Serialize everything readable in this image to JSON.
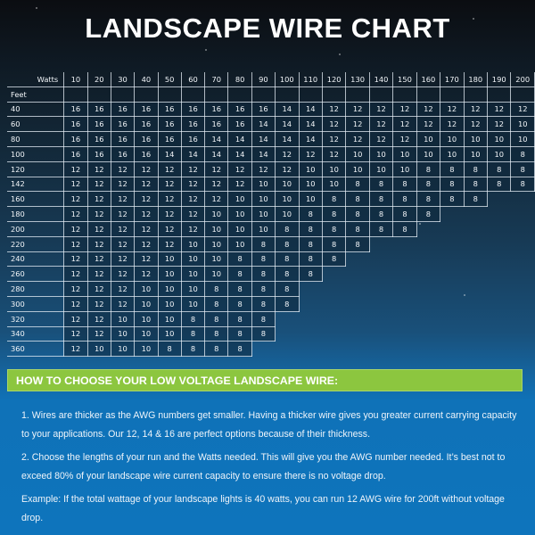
{
  "title": "LANDSCAPE WIRE CHART",
  "table": {
    "corner_label": "Watts",
    "row_header_label": "Feet",
    "watts": [
      "10",
      "20",
      "30",
      "40",
      "50",
      "60",
      "70",
      "80",
      "90",
      "100",
      "110",
      "120",
      "130",
      "140",
      "150",
      "160",
      "170",
      "180",
      "190",
      "200"
    ],
    "rows": [
      {
        "feet": "40",
        "values": [
          "16",
          "16",
          "16",
          "16",
          "16",
          "16",
          "16",
          "16",
          "16",
          "14",
          "14",
          "12",
          "12",
          "12",
          "12",
          "12",
          "12",
          "12",
          "12",
          "12"
        ]
      },
      {
        "feet": "60",
        "values": [
          "16",
          "16",
          "16",
          "16",
          "16",
          "16",
          "16",
          "16",
          "14",
          "14",
          "14",
          "12",
          "12",
          "12",
          "12",
          "12",
          "12",
          "12",
          "12",
          "10"
        ]
      },
      {
        "feet": "80",
        "values": [
          "16",
          "16",
          "16",
          "16",
          "16",
          "16",
          "14",
          "14",
          "14",
          "14",
          "14",
          "12",
          "12",
          "12",
          "12",
          "10",
          "10",
          "10",
          "10",
          "10"
        ]
      },
      {
        "feet": "100",
        "values": [
          "16",
          "16",
          "16",
          "16",
          "14",
          "14",
          "14",
          "14",
          "14",
          "12",
          "12",
          "12",
          "10",
          "10",
          "10",
          "10",
          "10",
          "10",
          "10",
          "8"
        ]
      },
      {
        "feet": "120",
        "values": [
          "12",
          "12",
          "12",
          "12",
          "12",
          "12",
          "12",
          "12",
          "12",
          "12",
          "10",
          "10",
          "10",
          "10",
          "10",
          "8",
          "8",
          "8",
          "8",
          "8"
        ]
      },
      {
        "feet": "142",
        "values": [
          "12",
          "12",
          "12",
          "12",
          "12",
          "12",
          "12",
          "12",
          "10",
          "10",
          "10",
          "10",
          "8",
          "8",
          "8",
          "8",
          "8",
          "8",
          "8",
          "8"
        ]
      },
      {
        "feet": "160",
        "values": [
          "12",
          "12",
          "12",
          "12",
          "12",
          "12",
          "12",
          "10",
          "10",
          "10",
          "10",
          "8",
          "8",
          "8",
          "8",
          "8",
          "8",
          "8"
        ]
      },
      {
        "feet": "180",
        "values": [
          "12",
          "12",
          "12",
          "12",
          "12",
          "12",
          "10",
          "10",
          "10",
          "10",
          "8",
          "8",
          "8",
          "8",
          "8",
          "8"
        ]
      },
      {
        "feet": "200",
        "values": [
          "12",
          "12",
          "12",
          "12",
          "12",
          "12",
          "10",
          "10",
          "10",
          "8",
          "8",
          "8",
          "8",
          "8",
          "8"
        ]
      },
      {
        "feet": "220",
        "values": [
          "12",
          "12",
          "12",
          "12",
          "12",
          "10",
          "10",
          "10",
          "8",
          "8",
          "8",
          "8",
          "8"
        ]
      },
      {
        "feet": "240",
        "values": [
          "12",
          "12",
          "12",
          "12",
          "10",
          "10",
          "10",
          "8",
          "8",
          "8",
          "8",
          "8"
        ]
      },
      {
        "feet": "260",
        "values": [
          "12",
          "12",
          "12",
          "12",
          "10",
          "10",
          "10",
          "8",
          "8",
          "8",
          "8"
        ]
      },
      {
        "feet": "280",
        "values": [
          "12",
          "12",
          "12",
          "10",
          "10",
          "10",
          "8",
          "8",
          "8",
          "8"
        ]
      },
      {
        "feet": "300",
        "values": [
          "12",
          "12",
          "12",
          "10",
          "10",
          "10",
          "8",
          "8",
          "8",
          "8"
        ]
      },
      {
        "feet": "320",
        "values": [
          "12",
          "12",
          "10",
          "10",
          "10",
          "8",
          "8",
          "8",
          "8"
        ]
      },
      {
        "feet": "340",
        "values": [
          "12",
          "12",
          "10",
          "10",
          "10",
          "8",
          "8",
          "8",
          "8"
        ]
      },
      {
        "feet": "360",
        "values": [
          "12",
          "10",
          "10",
          "10",
          "8",
          "8",
          "8",
          "8"
        ]
      }
    ]
  },
  "chart_data": {
    "type": "table",
    "title": "LANDSCAPE WIRE CHART",
    "xlabel": "Watts",
    "ylabel": "Feet",
    "columns": [
      10,
      20,
      30,
      40,
      50,
      60,
      70,
      80,
      90,
      100,
      110,
      120,
      130,
      140,
      150,
      160,
      170,
      180,
      190,
      200
    ],
    "rows": [
      40,
      60,
      80,
      100,
      120,
      142,
      160,
      180,
      200,
      220,
      240,
      260,
      280,
      300,
      320,
      340,
      360
    ],
    "values": [
      [
        16,
        16,
        16,
        16,
        16,
        16,
        16,
        16,
        16,
        14,
        14,
        12,
        12,
        12,
        12,
        12,
        12,
        12,
        12,
        12
      ],
      [
        16,
        16,
        16,
        16,
        16,
        16,
        16,
        16,
        14,
        14,
        14,
        12,
        12,
        12,
        12,
        12,
        12,
        12,
        12,
        10
      ],
      [
        16,
        16,
        16,
        16,
        16,
        16,
        14,
        14,
        14,
        14,
        14,
        12,
        12,
        12,
        12,
        10,
        10,
        10,
        10,
        10
      ],
      [
        16,
        16,
        16,
        16,
        14,
        14,
        14,
        14,
        14,
        12,
        12,
        12,
        10,
        10,
        10,
        10,
        10,
        10,
        10,
        8
      ],
      [
        12,
        12,
        12,
        12,
        12,
        12,
        12,
        12,
        12,
        12,
        10,
        10,
        10,
        10,
        10,
        8,
        8,
        8,
        8,
        8
      ],
      [
        12,
        12,
        12,
        12,
        12,
        12,
        12,
        12,
        10,
        10,
        10,
        10,
        8,
        8,
        8,
        8,
        8,
        8,
        8,
        8
      ],
      [
        12,
        12,
        12,
        12,
        12,
        12,
        12,
        10,
        10,
        10,
        10,
        8,
        8,
        8,
        8,
        8,
        8,
        8
      ],
      [
        12,
        12,
        12,
        12,
        12,
        12,
        10,
        10,
        10,
        10,
        8,
        8,
        8,
        8,
        8,
        8
      ],
      [
        12,
        12,
        12,
        12,
        12,
        12,
        10,
        10,
        10,
        8,
        8,
        8,
        8,
        8,
        8
      ],
      [
        12,
        12,
        12,
        12,
        12,
        10,
        10,
        10,
        8,
        8,
        8,
        8,
        8
      ],
      [
        12,
        12,
        12,
        12,
        10,
        10,
        10,
        8,
        8,
        8,
        8,
        8
      ],
      [
        12,
        12,
        12,
        12,
        10,
        10,
        10,
        8,
        8,
        8,
        8
      ],
      [
        12,
        12,
        12,
        10,
        10,
        10,
        8,
        8,
        8,
        8
      ],
      [
        12,
        12,
        12,
        10,
        10,
        10,
        8,
        8,
        8,
        8
      ],
      [
        12,
        12,
        10,
        10,
        10,
        8,
        8,
        8,
        8
      ],
      [
        12,
        12,
        10,
        10,
        10,
        8,
        8,
        8,
        8
      ],
      [
        12,
        10,
        10,
        10,
        8,
        8,
        8,
        8
      ]
    ],
    "value_unit": "AWG"
  },
  "guide": {
    "header": "HOW TO CHOOSE YOUR LOW VOLTAGE LANDSCAPE WIRE:",
    "paragraphs": [
      "1. Wires are thicker as the AWG numbers get smaller. Having a thicker wire gives you greater current carrying capacity to your applications. Our 12, 14 & 16 are perfect options because of their thickness.",
      "2.  Choose the lengths of your run and the Watts needed. This will give you the AWG number needed. It’s best not to exceed 80% of your landscape wire current capacity to ensure there is no voltage drop.",
      "Example: If the total wattage of your landscape lights is 40 watts, you can run 12 AWG wire for 200ft without voltage drop."
    ]
  },
  "colors": {
    "header_green": "#8cc63f",
    "panel_blue": "#0e74bc",
    "top_dark": "#0b0d11"
  }
}
